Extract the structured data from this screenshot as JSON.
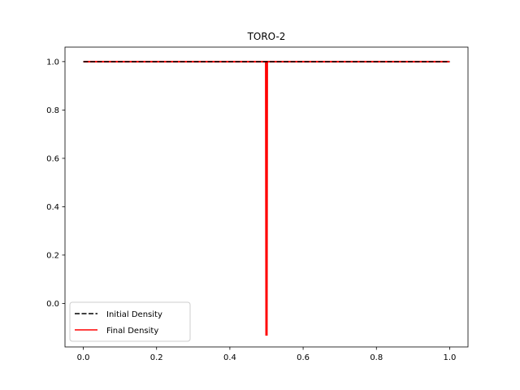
{
  "chart_data": {
    "type": "line",
    "title": "TORO-2",
    "xlabel": "",
    "ylabel": "",
    "xlim": [
      -0.05,
      1.05
    ],
    "ylim": [
      -0.18,
      1.06
    ],
    "x_ticks": [
      0.0,
      0.2,
      0.4,
      0.6,
      0.8,
      1.0
    ],
    "x_tick_labels": [
      "0.0",
      "0.2",
      "0.4",
      "0.6",
      "0.8",
      "1.0"
    ],
    "y_ticks": [
      0.0,
      0.2,
      0.4,
      0.6,
      0.8,
      1.0
    ],
    "y_tick_labels": [
      "0.0",
      "0.2",
      "0.4",
      "0.6",
      "0.8",
      "1.0"
    ],
    "grid": false,
    "legend_position": "lower-left",
    "series": [
      {
        "name": "Initial Density",
        "color": "#000000",
        "style": "dashed",
        "x": [
          0.0,
          1.0
        ],
        "y": [
          1.0,
          1.0
        ]
      },
      {
        "name": "Final Density",
        "color": "#ff0000",
        "style": "solid",
        "x": [
          0.0,
          0.498,
          0.499,
          0.5,
          0.501,
          0.502,
          1.0
        ],
        "y": [
          1.0,
          1.0,
          -0.13,
          -0.13,
          -0.13,
          1.0,
          1.0
        ]
      }
    ]
  }
}
